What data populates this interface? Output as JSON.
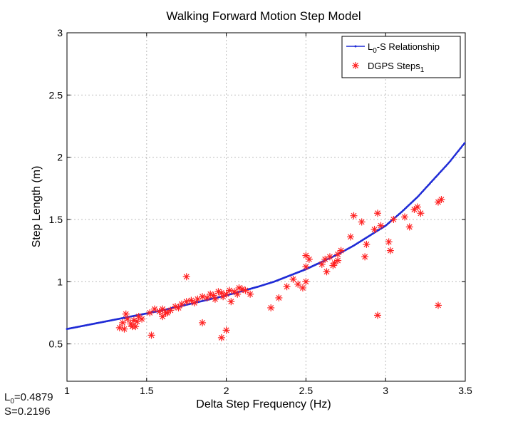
{
  "chart_data": {
    "type": "scatter",
    "title": "Walking Forward Motion Step Model",
    "xlabel": "Delta Step Frequency (Hz)",
    "ylabel": "Step Length (m)",
    "xlim": [
      1,
      3.5
    ],
    "ylim": [
      0.2,
      3
    ],
    "xticks": [
      1,
      1.5,
      2,
      2.5,
      3,
      3.5
    ],
    "xtick_labels": [
      "1",
      "1.5",
      "2",
      "2.5",
      "3",
      "3.5"
    ],
    "yticks": [
      0.5,
      1,
      1.5,
      2,
      2.5,
      3
    ],
    "ytick_labels": [
      "0.5",
      "1",
      "1.5",
      "2",
      "2.5",
      "3"
    ],
    "grid": true,
    "legend_position": "top-right",
    "series": [
      {
        "name": "L0-S Relationship",
        "name_main": "L",
        "name_sub": "0",
        "name_rest": "-S Relationship",
        "kind": "line",
        "color": "#1f2bd6",
        "x": [
          1.0,
          1.1,
          1.2,
          1.3,
          1.4,
          1.5,
          1.6,
          1.7,
          1.8,
          1.9,
          2.0,
          2.1,
          2.2,
          2.3,
          2.4,
          2.5,
          2.6,
          2.7,
          2.8,
          2.9,
          3.0,
          3.1,
          3.2,
          3.3,
          3.4,
          3.5
        ],
        "y": [
          0.62,
          0.645,
          0.67,
          0.695,
          0.72,
          0.745,
          0.77,
          0.8,
          0.83,
          0.86,
          0.89,
          0.925,
          0.96,
          1.0,
          1.05,
          1.1,
          1.16,
          1.22,
          1.29,
          1.37,
          1.45,
          1.56,
          1.68,
          1.82,
          1.96,
          2.12
        ]
      },
      {
        "name": "DGPS Steps1",
        "name_main": "DGPS Steps",
        "name_sub": "1",
        "kind": "scatter",
        "marker": "asterisk",
        "color": "#ff2020",
        "x": [
          1.33,
          1.35,
          1.36,
          1.38,
          1.4,
          1.41,
          1.42,
          1.44,
          1.45,
          1.47,
          1.37,
          1.43,
          1.52,
          1.55,
          1.58,
          1.6,
          1.62,
          1.65,
          1.68,
          1.7,
          1.72,
          1.75,
          1.78,
          1.8,
          1.82,
          1.85,
          1.88,
          1.9,
          1.92,
          1.95,
          1.97,
          2.0,
          2.02,
          2.05,
          2.08,
          2.1,
          2.12,
          2.15,
          1.6,
          1.63,
          1.93,
          1.98,
          2.03,
          2.07,
          1.53,
          1.75,
          1.85,
          1.97,
          2.0,
          2.28,
          2.33,
          2.38,
          2.42,
          2.45,
          2.48,
          2.5,
          2.5,
          2.52,
          2.5,
          2.6,
          2.62,
          2.65,
          2.68,
          2.7,
          2.7,
          2.72,
          2.63,
          2.67,
          2.78,
          2.8,
          2.85,
          2.88,
          2.93,
          2.95,
          3.02,
          3.05,
          2.87,
          2.97,
          3.03,
          3.12,
          3.15,
          3.18,
          3.2,
          3.22,
          3.33,
          3.35,
          2.95,
          3.33
        ],
        "y": [
          0.63,
          0.67,
          0.62,
          0.7,
          0.66,
          0.64,
          0.69,
          0.68,
          0.72,
          0.7,
          0.74,
          0.64,
          0.75,
          0.78,
          0.76,
          0.78,
          0.75,
          0.77,
          0.8,
          0.79,
          0.82,
          0.84,
          0.85,
          0.83,
          0.86,
          0.88,
          0.87,
          0.9,
          0.89,
          0.92,
          0.91,
          0.9,
          0.93,
          0.92,
          0.95,
          0.94,
          0.93,
          0.9,
          0.72,
          0.75,
          0.86,
          0.88,
          0.84,
          0.9,
          0.57,
          1.04,
          0.67,
          0.55,
          0.61,
          0.79,
          0.87,
          0.96,
          1.02,
          0.98,
          0.95,
          1.0,
          1.21,
          1.18,
          1.12,
          1.14,
          1.18,
          1.2,
          1.15,
          1.22,
          1.17,
          1.25,
          1.08,
          1.13,
          1.36,
          1.53,
          1.48,
          1.3,
          1.42,
          1.55,
          1.32,
          1.5,
          1.2,
          1.45,
          1.25,
          1.52,
          1.44,
          1.58,
          1.6,
          1.55,
          1.64,
          1.66,
          0.73,
          0.81
        ]
      }
    ],
    "annotations": {
      "l0_main": "L",
      "l0_sub": "0",
      "l0_value": "=0.4879",
      "s_text": "S=0.2196"
    }
  }
}
